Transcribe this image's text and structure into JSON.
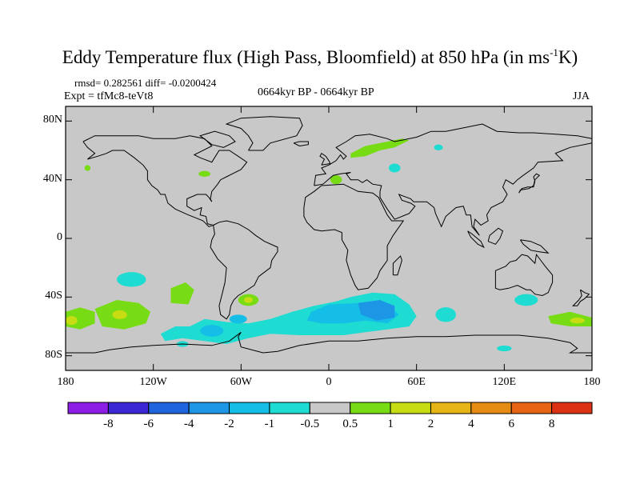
{
  "title_main": "Eddy Temperature flux (High Pass, Bloomfield) at 850 hPa (in ms",
  "title_sup": "-1",
  "title_end": "K)",
  "stats": "rmsd= 0.282561 diff= -0.0200424",
  "expt": "Expt = tfMc8-teVt8",
  "period": "0664kyr BP - 0664kyr BP",
  "season": "JJA",
  "lat_labels": [
    "80N",
    "40N",
    "0",
    "40S",
    "80S"
  ],
  "lat_values": [
    80,
    40,
    0,
    -40,
    -80
  ],
  "lon_labels": [
    "180",
    "120W",
    "60W",
    "0",
    "60E",
    "120E",
    "180"
  ],
  "lon_values": [
    -180,
    -120,
    -60,
    0,
    60,
    120,
    180
  ],
  "colorbar": {
    "labels": [
      "-8",
      "-6",
      "-4",
      "-2",
      "-1",
      "-0.5",
      "0.5",
      "1",
      "2",
      "4",
      "6",
      "8"
    ],
    "colors": [
      "#8c1ee6",
      "#3c28d2",
      "#1e64dc",
      "#1e96e6",
      "#14bee6",
      "#1edcd2",
      "#c8c8c8",
      "#78dc14",
      "#c8dc14",
      "#e6b414",
      "#e68c14",
      "#e66414",
      "#dc3214"
    ]
  },
  "map": {
    "background_color": "#c8c8c8",
    "lon_range": [
      -180,
      180
    ],
    "lat_range": [
      -90,
      90
    ]
  }
}
